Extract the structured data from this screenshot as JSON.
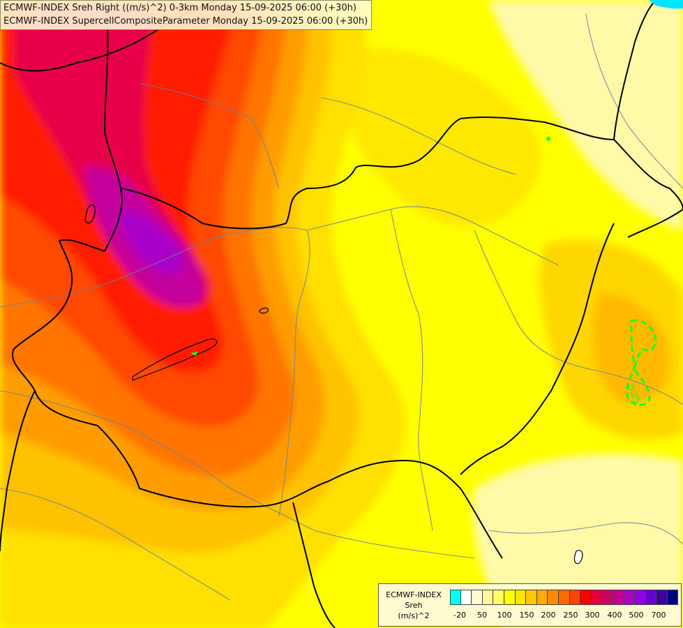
{
  "titles": {
    "line1": "ECMWF-INDEX Sreh Right ((m/s)^2) 0-3km Monday 15-09-2025 06:00 (+30h)",
    "line2": "ECMWF-INDEX SupercellCompositeParameter Monday 15-09-2025 06:00 (+30h)"
  },
  "legend": {
    "line1": "ECMWF-INDEX",
    "line2": "Sreh",
    "line3": "(m/s)^2",
    "swatches": [
      "#00ffff",
      "#ffffff",
      "#fffbd0",
      "#fff59b",
      "#ffff63",
      "#ffff00",
      "#ffe400",
      "#ffc800",
      "#ffab00",
      "#ff8c00",
      "#ff6a00",
      "#ff4500",
      "#ff0000",
      "#e0003c",
      "#cc0066",
      "#c00090",
      "#b000c0",
      "#9000e0",
      "#6600cc",
      "#3f00a0",
      "#000080"
    ],
    "ticks": [
      "-20",
      "50",
      "100",
      "150",
      "200",
      "250",
      "300",
      "400",
      "500",
      "700"
    ]
  },
  "contour_label": "0.25",
  "colors": {
    "contour": "#19ff19",
    "border": "#000000",
    "rivers": "#6f7f99"
  }
}
